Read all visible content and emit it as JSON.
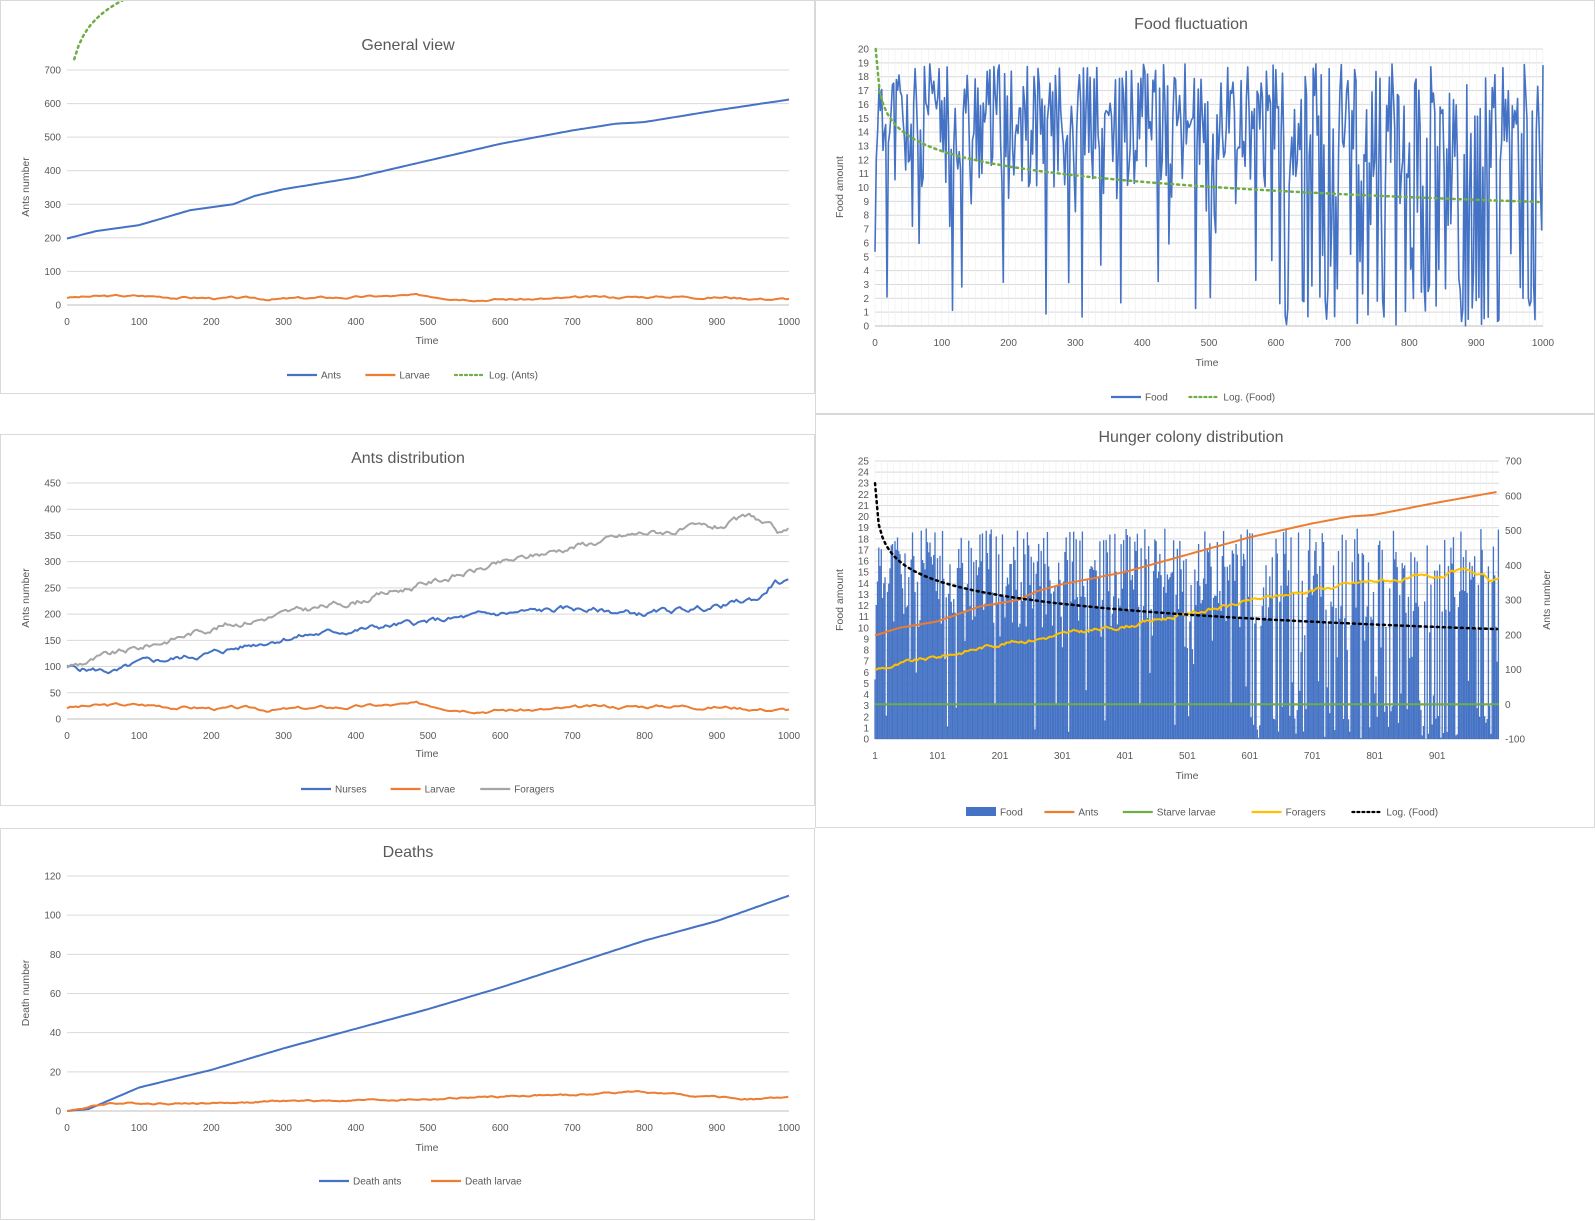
{
  "charts": [
    {
      "type": "line",
      "title": "General view",
      "xlabel": "Time",
      "ylabel": "Ants number",
      "xlim": [
        0,
        1000
      ],
      "ylim": [
        0,
        700
      ],
      "xticks": [
        0,
        100,
        200,
        300,
        400,
        500,
        600,
        700,
        800,
        900,
        1000
      ],
      "yticks": [
        0,
        100,
        200,
        300,
        400,
        500,
        600,
        700
      ],
      "series": [
        {
          "name": "Ants",
          "color": "#4472C4",
          "style": "solid",
          "shape": "knots",
          "knots": [
            [
              0,
              198
            ],
            [
              40,
              220
            ],
            [
              100,
              238
            ],
            [
              170,
              282
            ],
            [
              230,
              300
            ],
            [
              260,
              325
            ],
            [
              300,
              345
            ],
            [
              400,
              380
            ],
            [
              500,
              430
            ],
            [
              600,
              480
            ],
            [
              700,
              520
            ],
            [
              760,
              540
            ],
            [
              800,
              545
            ],
            [
              900,
              580
            ],
            [
              1000,
              612
            ]
          ]
        },
        {
          "name": "Larvae",
          "color": "#ED7D31",
          "style": "solid",
          "shape": "noise",
          "base": 22,
          "amp": 6,
          "seed": 3
        },
        {
          "name": "Log. (Ants)",
          "color": "#70AD47",
          "style": "dotted",
          "shape": "log",
          "a": 86,
          "b": 534,
          "x0": 10
        }
      ]
    },
    {
      "type": "line",
      "title": "Food fluctuation",
      "xlabel": "Time",
      "ylabel": "Food amount",
      "xlim": [
        0,
        1000
      ],
      "ylim": [
        0,
        20
      ],
      "xticks": [
        0,
        100,
        200,
        300,
        400,
        500,
        600,
        700,
        800,
        900,
        1000
      ],
      "yticks": [
        0,
        1,
        2,
        3,
        4,
        5,
        6,
        7,
        8,
        9,
        10,
        11,
        12,
        13,
        14,
        15,
        16,
        17,
        18,
        19,
        20
      ],
      "series": [
        {
          "name": "Food",
          "color": "#4472C4",
          "style": "solid",
          "shape": "volatile",
          "seed": 11
        },
        {
          "name": "Log. (Food)",
          "color": "#70AD47",
          "style": "dotted",
          "shape": "log",
          "a": -1.6,
          "b": 20,
          "x0": 1
        }
      ]
    },
    {
      "type": "line",
      "title": "Ants distribution",
      "xlabel": "Time",
      "ylabel": "Ants number",
      "xlim": [
        0,
        1000
      ],
      "ylim": [
        0,
        450
      ],
      "xticks": [
        0,
        100,
        200,
        300,
        400,
        500,
        600,
        700,
        800,
        900,
        1000
      ],
      "yticks": [
        0,
        50,
        100,
        150,
        200,
        250,
        300,
        350,
        400,
        450
      ],
      "series": [
        {
          "name": "Nurses",
          "color": "#4472C4",
          "style": "solid",
          "shape": "noiseknots",
          "amp": 8,
          "seed": 5,
          "knots": [
            [
              0,
              98
            ],
            [
              70,
              90
            ],
            [
              100,
              105
            ],
            [
              200,
              125
            ],
            [
              300,
              155
            ],
            [
              400,
              170
            ],
            [
              500,
              185
            ],
            [
              600,
              200
            ],
            [
              700,
              210
            ],
            [
              800,
              200
            ],
            [
              900,
              215
            ],
            [
              960,
              230
            ],
            [
              980,
              262
            ],
            [
              1000,
              258
            ]
          ]
        },
        {
          "name": "Larvae",
          "color": "#ED7D31",
          "style": "solid",
          "shape": "noise",
          "base": 22,
          "amp": 6,
          "seed": 3
        },
        {
          "name": "Foragers",
          "color": "#A5A5A5",
          "style": "solid",
          "shape": "noiseknots",
          "amp": 9,
          "seed": 9,
          "knots": [
            [
              0,
              100
            ],
            [
              100,
              135
            ],
            [
              200,
              175
            ],
            [
              300,
              200
            ],
            [
              400,
              225
            ],
            [
              500,
              260
            ],
            [
              600,
              295
            ],
            [
              700,
              330
            ],
            [
              800,
              355
            ],
            [
              900,
              365
            ],
            [
              950,
              385
            ],
            [
              990,
              350
            ],
            [
              1000,
              355
            ]
          ]
        }
      ]
    },
    {
      "type": "line",
      "title": "Hunger colony distribution",
      "xlabel": "Time",
      "ylabel": "Food amount",
      "y2label": "Ants number",
      "xlim": [
        1,
        1000
      ],
      "ylim": [
        0,
        25
      ],
      "y2lim": [
        -100,
        700
      ],
      "xticks": [
        1,
        101,
        201,
        301,
        401,
        501,
        601,
        701,
        801,
        901
      ],
      "yticks": [
        0,
        1,
        2,
        3,
        4,
        5,
        6,
        7,
        8,
        9,
        10,
        11,
        12,
        13,
        14,
        15,
        16,
        17,
        18,
        19,
        20,
        21,
        22,
        23,
        24,
        25
      ],
      "y2ticks": [
        -100,
        0,
        100,
        200,
        300,
        400,
        500,
        600,
        700
      ],
      "series": [
        {
          "name": "Food",
          "color": "#4472C4",
          "style": "bars",
          "shape": "volatile",
          "seed": 11,
          "axis": "left"
        },
        {
          "name": "Ants",
          "color": "#ED7D31",
          "style": "solid",
          "axis": "right",
          "shape": "knots",
          "knots": [
            [
              1,
              198
            ],
            [
              40,
              220
            ],
            [
              100,
              238
            ],
            [
              170,
              282
            ],
            [
              230,
              300
            ],
            [
              260,
              325
            ],
            [
              300,
              345
            ],
            [
              400,
              380
            ],
            [
              500,
              430
            ],
            [
              600,
              480
            ],
            [
              700,
              520
            ],
            [
              760,
              540
            ],
            [
              800,
              545
            ],
            [
              900,
              580
            ],
            [
              1000,
              612
            ]
          ]
        },
        {
          "name": "Starve larvae",
          "color": "#70AD47",
          "style": "solid",
          "axis": "right",
          "shape": "const",
          "value": 0
        },
        {
          "name": "Foragers",
          "color": "#FFC000",
          "style": "solid",
          "axis": "right",
          "shape": "noiseknots",
          "amp": 9,
          "seed": 9,
          "knots": [
            [
              1,
              100
            ],
            [
              100,
              135
            ],
            [
              200,
              175
            ],
            [
              300,
              200
            ],
            [
              400,
              225
            ],
            [
              500,
              260
            ],
            [
              600,
              295
            ],
            [
              700,
              330
            ],
            [
              800,
              355
            ],
            [
              900,
              365
            ],
            [
              950,
              385
            ],
            [
              990,
              350
            ],
            [
              1000,
              355
            ]
          ]
        },
        {
          "name": "Log. (Food)",
          "color": "#000000",
          "style": "dotted",
          "axis": "left",
          "shape": "log",
          "a": -1.9,
          "b": 23,
          "x0": 1
        }
      ]
    },
    {
      "type": "line",
      "title": "Deaths",
      "xlabel": "Time",
      "ylabel": "Death number",
      "xlim": [
        0,
        1000
      ],
      "ylim": [
        0,
        120
      ],
      "xticks": [
        0,
        100,
        200,
        300,
        400,
        500,
        600,
        700,
        800,
        900,
        1000
      ],
      "yticks": [
        0,
        20,
        40,
        60,
        80,
        100,
        120
      ],
      "series": [
        {
          "name": "Death ants",
          "color": "#4472C4",
          "style": "solid",
          "shape": "knots",
          "knots": [
            [
              0,
              0
            ],
            [
              30,
              1
            ],
            [
              100,
              12
            ],
            [
              200,
              21
            ],
            [
              300,
              32
            ],
            [
              400,
              42
            ],
            [
              500,
              52
            ],
            [
              600,
              63
            ],
            [
              700,
              75
            ],
            [
              800,
              87
            ],
            [
              900,
              97
            ],
            [
              1000,
              110
            ]
          ]
        },
        {
          "name": "Death larvae",
          "color": "#ED7D31",
          "style": "solid",
          "shape": "noiseknots",
          "amp": 0.6,
          "seed": 4,
          "knots": [
            [
              0,
              0
            ],
            [
              60,
              4
            ],
            [
              200,
              4
            ],
            [
              300,
              5
            ],
            [
              500,
              6
            ],
            [
              650,
              8
            ],
            [
              700,
              8
            ],
            [
              780,
              10
            ],
            [
              900,
              7
            ],
            [
              950,
              6
            ],
            [
              1000,
              7
            ]
          ]
        }
      ]
    }
  ]
}
